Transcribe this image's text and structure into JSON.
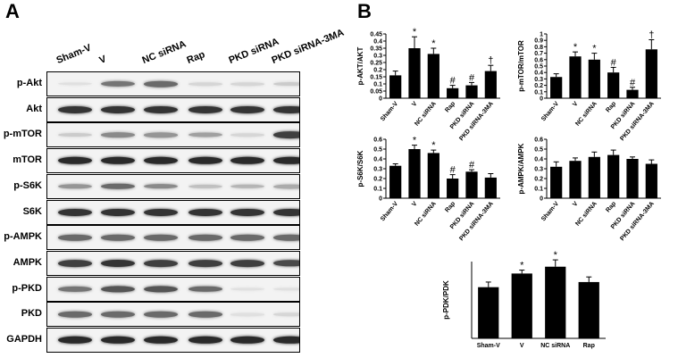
{
  "panel_a_label": "A",
  "panel_b_label": "B",
  "lanes": [
    "Sham-V",
    "V",
    "NC siRNA",
    "Rap",
    "PKD siRNA",
    "PKD siRNA-3MA"
  ],
  "blots": [
    {
      "label": "p-Akt",
      "intensity": [
        0.05,
        0.55,
        0.6,
        0.1,
        0.1,
        0.15
      ]
    },
    {
      "label": "Akt",
      "intensity": [
        0.85,
        0.85,
        0.85,
        0.85,
        0.85,
        0.85
      ]
    },
    {
      "label": "p-mTOR",
      "intensity": [
        0.15,
        0.45,
        0.4,
        0.35,
        0.1,
        0.8
      ]
    },
    {
      "label": "mTOR",
      "intensity": [
        0.9,
        0.9,
        0.9,
        0.9,
        0.9,
        0.9
      ]
    },
    {
      "label": "p-S6K",
      "intensity": [
        0.4,
        0.6,
        0.45,
        0.2,
        0.25,
        0.3
      ]
    },
    {
      "label": "S6K",
      "intensity": [
        0.85,
        0.85,
        0.85,
        0.85,
        0.85,
        0.85
      ]
    },
    {
      "label": "p-AMPK",
      "intensity": [
        0.6,
        0.6,
        0.6,
        0.6,
        0.6,
        0.6
      ]
    },
    {
      "label": "AMPK",
      "intensity": [
        0.8,
        0.85,
        0.8,
        0.8,
        0.8,
        0.75
      ]
    },
    {
      "label": "p-PKD",
      "intensity": [
        0.55,
        0.7,
        0.7,
        0.6,
        0.05,
        0.05
      ]
    },
    {
      "label": "PKD",
      "intensity": [
        0.6,
        0.6,
        0.6,
        0.6,
        0.05,
        0.1
      ]
    },
    {
      "label": "GAPDH",
      "intensity": [
        0.9,
        0.9,
        0.9,
        0.9,
        0.9,
        0.9
      ]
    }
  ],
  "chart_data": [
    {
      "type": "bar",
      "ylabel": "p-AKT/AKT",
      "categories": [
        "Sham-V",
        "V",
        "NC siRNA",
        "Rap",
        "PKD siRNA",
        "PKD siRNA-3MA"
      ],
      "values": [
        0.16,
        0.35,
        0.31,
        0.07,
        0.09,
        0.19
      ],
      "errors": [
        0.03,
        0.08,
        0.04,
        0.02,
        0.02,
        0.04
      ],
      "annotations": [
        "",
        "*",
        "*",
        "#",
        "#",
        "†"
      ],
      "ylim": [
        0,
        0.45
      ],
      "yticks": [
        0,
        0.05,
        0.1,
        0.15,
        0.2,
        0.25,
        0.3,
        0.35,
        0.4,
        0.45
      ]
    },
    {
      "type": "bar",
      "ylabel": "p-mTOR/mTOR",
      "categories": [
        "Sham-V",
        "V",
        "NC siRNA",
        "Rap",
        "PKD siRNA",
        "PKD siRNA-3MA"
      ],
      "values": [
        0.33,
        0.65,
        0.6,
        0.4,
        0.13,
        0.76
      ],
      "errors": [
        0.05,
        0.07,
        0.1,
        0.08,
        0.04,
        0.15
      ],
      "annotations": [
        "",
        "*",
        "*",
        "#",
        "#",
        "†"
      ],
      "ylim": [
        0,
        1
      ],
      "yticks": [
        0,
        0.1,
        0.2,
        0.3,
        0.4,
        0.5,
        0.6,
        0.7,
        0.8,
        0.9,
        1
      ]
    },
    {
      "type": "bar",
      "ylabel": "p-S6K/S6K",
      "categories": [
        "Sham-V",
        "V",
        "NC siRNA",
        "Rap",
        "PKD siRNA",
        "PKD siRNA-3MA"
      ],
      "values": [
        0.33,
        0.5,
        0.46,
        0.2,
        0.27,
        0.21
      ],
      "errors": [
        0.02,
        0.04,
        0.03,
        0.04,
        0.02,
        0.04
      ],
      "annotations": [
        "",
        "*",
        "*",
        "#",
        "#",
        ""
      ],
      "ylim": [
        0,
        0.6
      ],
      "yticks": [
        0,
        0.1,
        0.2,
        0.3,
        0.4,
        0.5,
        0.6
      ]
    },
    {
      "type": "bar",
      "ylabel": "p-AMPK/AMPK",
      "categories": [
        "Sham-V",
        "V",
        "NC siRNA",
        "Rap",
        "PKD siRNA",
        "PKD siRNA-3MA"
      ],
      "values": [
        0.32,
        0.38,
        0.42,
        0.44,
        0.4,
        0.35
      ],
      "errors": [
        0.05,
        0.03,
        0.05,
        0.05,
        0.02,
        0.04
      ],
      "annotations": [
        "",
        "",
        "",
        "",
        "",
        ""
      ],
      "ylim": [
        0,
        0.6
      ],
      "yticks": [
        0,
        0.1,
        0.2,
        0.3,
        0.4,
        0.5,
        0.6
      ]
    },
    {
      "type": "bar",
      "ylabel": "p-PDK/PDK",
      "categories": [
        "Sham-V",
        "V",
        "NC siRNA",
        "Rap"
      ],
      "values": [
        0.3,
        0.38,
        0.42,
        0.33
      ],
      "errors": [
        0.03,
        0.02,
        0.04,
        0.03
      ],
      "annotations": [
        "",
        "*",
        "*",
        ""
      ],
      "ylim": [
        0,
        0.45
      ],
      "yticks": []
    }
  ]
}
